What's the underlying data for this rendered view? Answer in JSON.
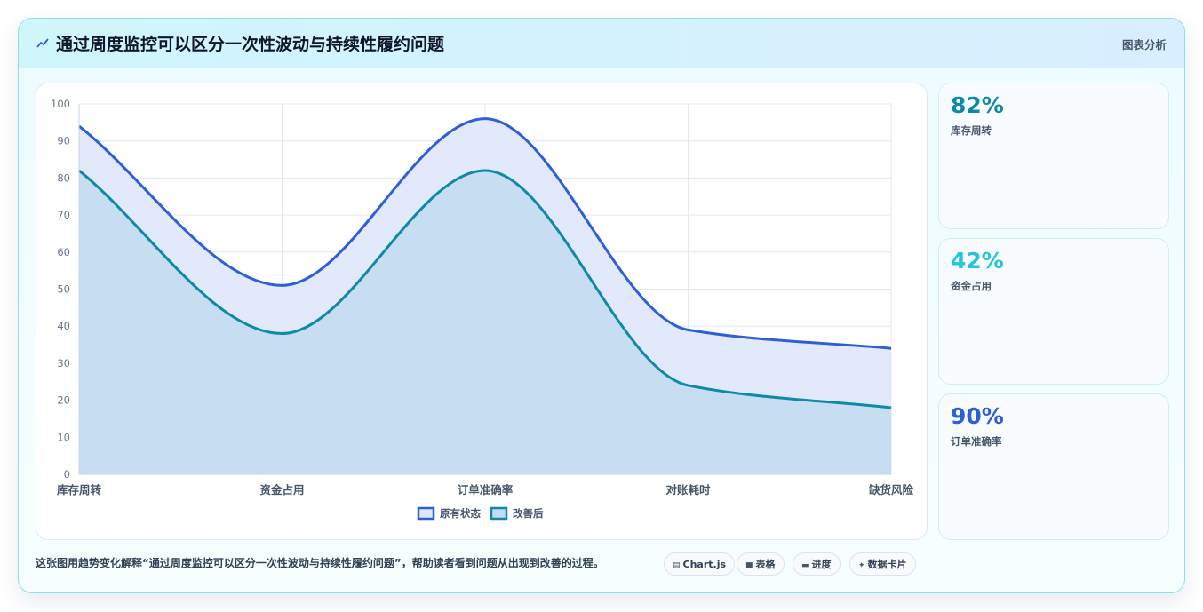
{
  "header": {
    "icon": "trend-line-icon",
    "title": "通过周度监控可以区分一次性波动与持续性履约问题",
    "right_label": "图表分析"
  },
  "chart_data": {
    "type": "area",
    "categories": [
      "库存周转",
      "资金占用",
      "订单准确率",
      "对账耗时",
      "缺货风险"
    ],
    "series": [
      {
        "name": "原有状态",
        "values": [
          94,
          51,
          96,
          39,
          34
        ],
        "color": "#2d5fd6",
        "fill": "#dfe8fb"
      },
      {
        "name": "改善后",
        "values": [
          82,
          38,
          82,
          24,
          18
        ],
        "color": "#0e89a8",
        "fill": "#c3dcf1"
      }
    ],
    "ylim": [
      0,
      100
    ],
    "yticks": [
      0,
      10,
      20,
      30,
      40,
      50,
      60,
      70,
      80,
      90,
      100
    ],
    "grid": true,
    "legend_position": "bottom"
  },
  "stats": [
    {
      "value": "82%",
      "label": "库存周转",
      "color": "#0e89a8"
    },
    {
      "value": "42%",
      "label": "资金占用",
      "color": "#22c4de"
    },
    {
      "value": "90%",
      "label": "订单准确率",
      "color": "#2d5fd6"
    }
  ],
  "footer": {
    "description": "这张图用趋势变化解释“通过周度监控可以区分一次性波动与持续性履约问题”，帮助读者看到问题从出现到改善的过程。",
    "tags": [
      {
        "icon": "chart-icon",
        "label": "Chart.js"
      },
      {
        "icon": "table-icon",
        "label": "表格"
      },
      {
        "icon": "progress-icon",
        "label": "进度"
      },
      {
        "icon": "sparkle-icon",
        "label": "数据卡片"
      }
    ]
  }
}
